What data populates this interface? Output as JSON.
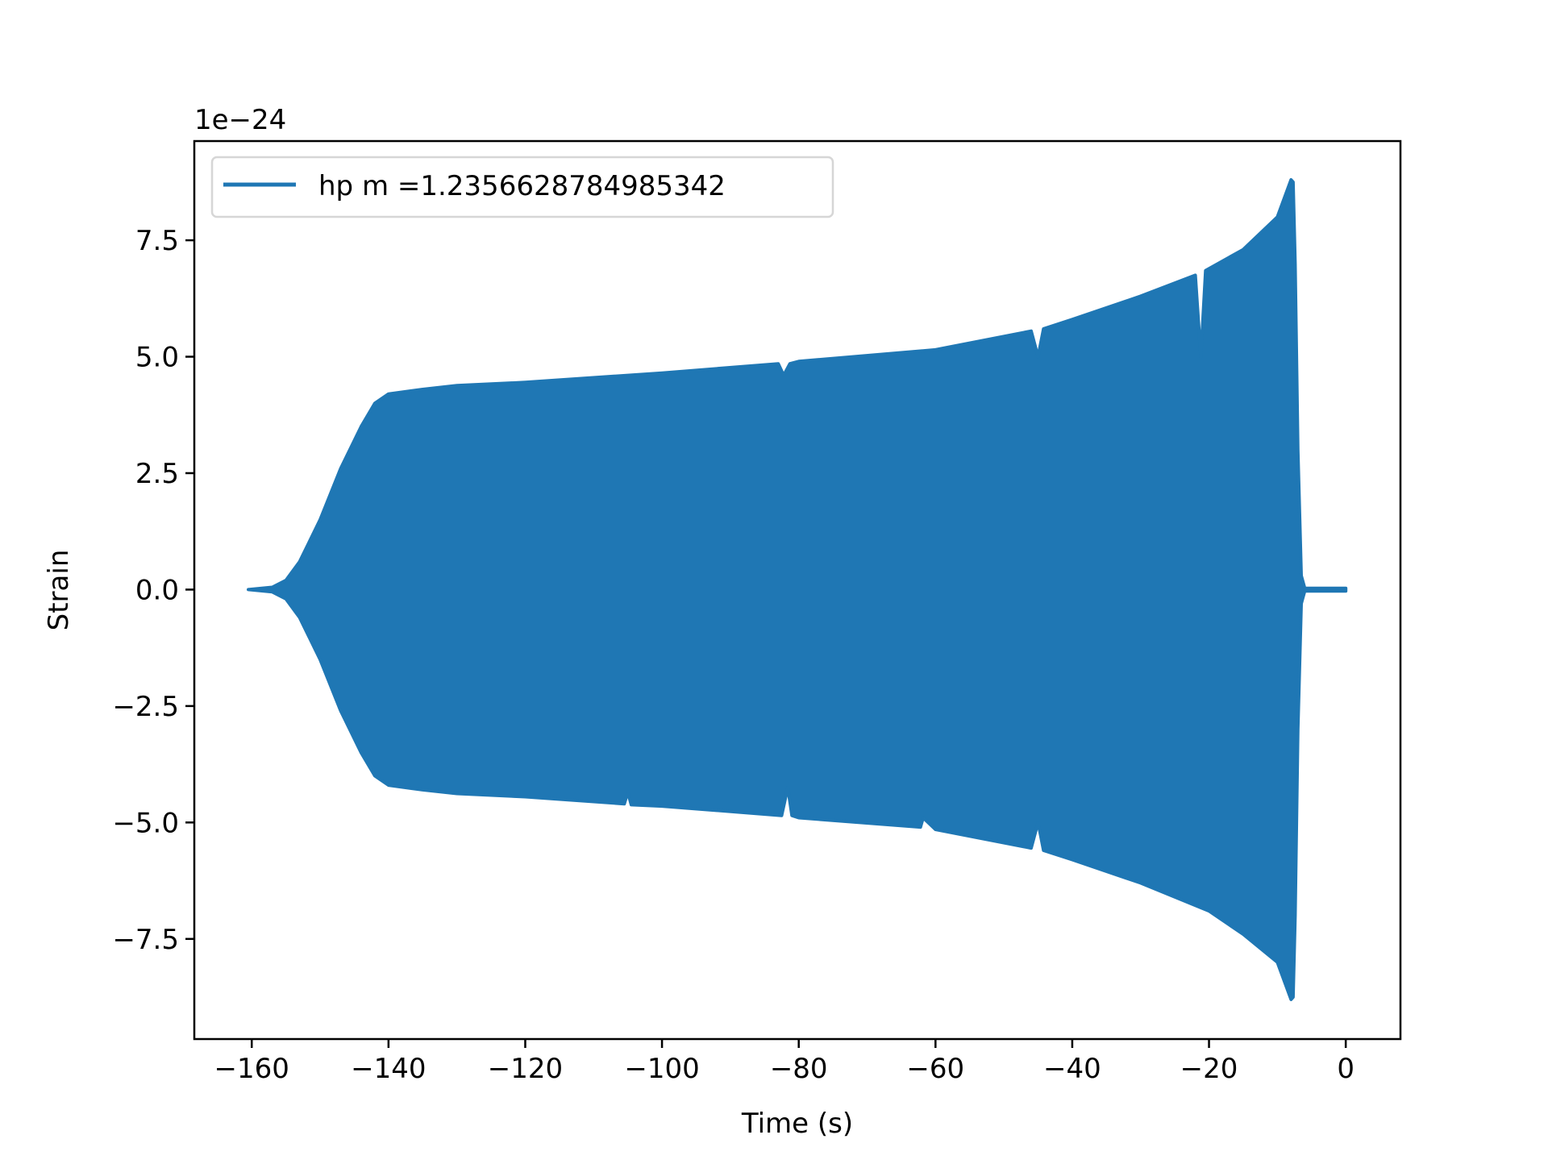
{
  "chart_data": {
    "type": "line",
    "title": "",
    "xlabel": "Time (s)",
    "ylabel": "Strain",
    "y_offset_label": "1e−24",
    "xlim": [
      -168.4,
      8.0
    ],
    "ylim": [
      -9.65,
      9.63
    ],
    "xticks": [
      -160,
      -140,
      -120,
      -100,
      -80,
      -60,
      -40,
      -20,
      0
    ],
    "xtick_labels": [
      "−160",
      "−140",
      "−120",
      "−100",
      "−80",
      "−60",
      "−40",
      "−20",
      "0"
    ],
    "yticks": [
      -7.5,
      -5.0,
      -2.5,
      0.0,
      2.5,
      5.0,
      7.5
    ],
    "ytick_labels": [
      "−7.5",
      "−5.0",
      "−2.5",
      "0.0",
      "2.5",
      "5.0",
      "7.5"
    ],
    "grid": false,
    "legend_position": "upper-left",
    "series": [
      {
        "name": "hp m =1.2356628784985342",
        "color": "#1f77b4",
        "envelope_upper": {
          "x": [
            -160.5,
            -157,
            -155,
            -153,
            -150,
            -147,
            -144,
            -142,
            -140,
            -135,
            -130,
            -120,
            -100,
            -83,
            -82.2,
            -81.3,
            -80,
            -60,
            -46,
            -45,
            -44.2,
            -40,
            -30,
            -22,
            -21.2,
            -20.5,
            -15,
            -10,
            -8,
            -7.7,
            -7.4,
            -7.0,
            -6.5,
            -6.0,
            0
          ],
          "y": [
            0.0,
            0.05,
            0.2,
            0.6,
            1.5,
            2.6,
            3.5,
            4.0,
            4.2,
            4.3,
            4.38,
            4.45,
            4.65,
            4.85,
            4.6,
            4.85,
            4.9,
            5.15,
            5.55,
            5.0,
            5.6,
            5.8,
            6.3,
            6.75,
            5.0,
            6.85,
            7.3,
            8.0,
            8.8,
            8.75,
            7.0,
            3.0,
            0.3,
            0.03,
            0.03
          ]
        },
        "envelope_lower": {
          "x": [
            -160.5,
            -157,
            -155,
            -153,
            -150,
            -147,
            -144,
            -142,
            -140,
            -135,
            -130,
            -120,
            -105.5,
            -105,
            -104.5,
            -100,
            -82.5,
            -81.6,
            -81,
            -80,
            -62.2,
            -61.8,
            -60,
            -46,
            -45,
            -44.2,
            -40,
            -30,
            -20,
            -15,
            -10,
            -8,
            -7.7,
            -7.4,
            -7.0,
            -6.5,
            -6.0,
            0
          ],
          "y": [
            0.0,
            -0.05,
            -0.2,
            -0.6,
            -1.5,
            -2.6,
            -3.5,
            -4.0,
            -4.2,
            -4.3,
            -4.38,
            -4.45,
            -4.6,
            -4.35,
            -4.62,
            -4.65,
            -4.85,
            -4.25,
            -4.85,
            -4.9,
            -5.1,
            -4.9,
            -5.15,
            -5.55,
            -5.0,
            -5.6,
            -5.8,
            -6.3,
            -6.9,
            -7.4,
            -8.0,
            -8.8,
            -8.75,
            -7.0,
            -3.0,
            -0.3,
            -0.03,
            -0.03
          ]
        }
      }
    ]
  }
}
